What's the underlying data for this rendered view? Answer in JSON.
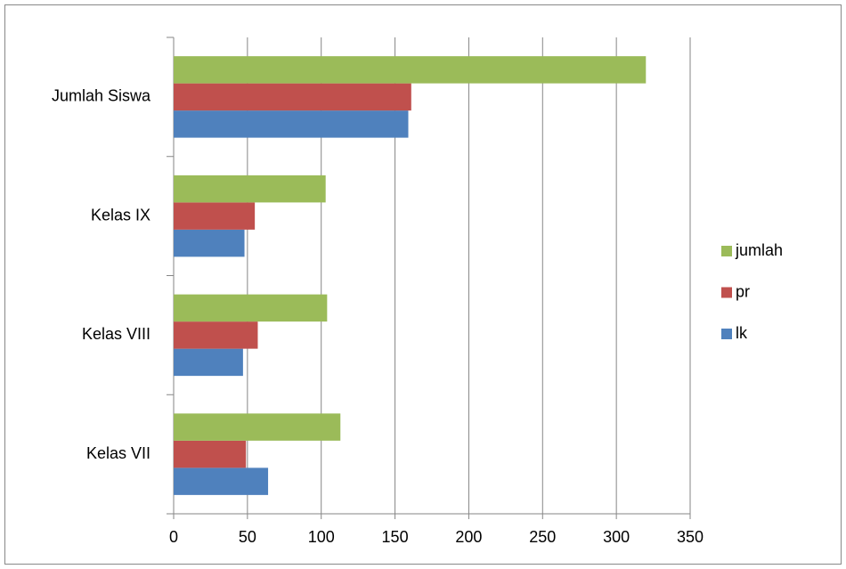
{
  "chart_data": {
    "type": "bar",
    "orientation": "horizontal",
    "categories": [
      "Kelas VII",
      "Kelas VIII",
      "Kelas IX",
      "Jumlah Siswa"
    ],
    "series": [
      {
        "name": "lk",
        "color": "#4f81bd",
        "values": [
          64,
          47,
          48,
          159
        ]
      },
      {
        "name": "pr",
        "color": "#c0504d",
        "values": [
          49,
          57,
          55,
          161
        ]
      },
      {
        "name": "jumlah",
        "color": "#9bbb59",
        "values": [
          113,
          104,
          103,
          320
        ]
      }
    ],
    "xlim": [
      0,
      350
    ],
    "xticks": [
      0,
      50,
      100,
      150,
      200,
      250,
      300,
      350
    ],
    "grid": true,
    "legend": "right"
  }
}
